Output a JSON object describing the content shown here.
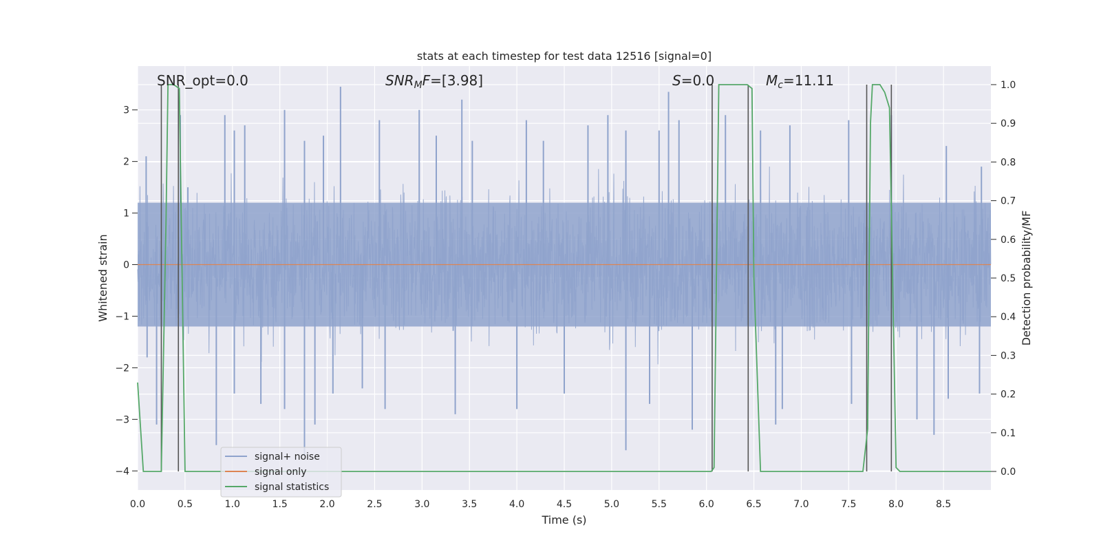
{
  "chart_data": {
    "type": "line",
    "title": "stats at each timestep for test data 12516 [signal=0]",
    "xlabel": "Time (s)",
    "ylabel": "Whitened strain",
    "y2label": "Detection probability/MF",
    "xlim": [
      0,
      9.0
    ],
    "ylim": [
      -4.37,
      3.85
    ],
    "y2lim": [
      -0.048,
      1.048
    ],
    "x_ticks": [
      "0.0",
      "0.5",
      "1.0",
      "1.5",
      "2.0",
      "2.5",
      "3.0",
      "3.5",
      "4.0",
      "4.5",
      "5.0",
      "5.5",
      "6.0",
      "6.5",
      "7.0",
      "7.5",
      "8.0",
      "8.5"
    ],
    "y_ticks": [
      "−4",
      "−3",
      "−2",
      "−1",
      "0",
      "1",
      "2",
      "3"
    ],
    "y2_ticks": [
      "0.0",
      "0.1",
      "0.2",
      "0.3",
      "0.4",
      "0.5",
      "0.6",
      "0.7",
      "0.8",
      "0.9",
      "1.0"
    ],
    "grid": true,
    "legend_position": "lower-left",
    "annotations": {
      "snr_opt": "SNR_opt=0.0",
      "snr_mf_sym": "SNR",
      "snr_mf_sub": "M",
      "snr_mf_sym2": "F",
      "snr_mf_val": "=[3.98]",
      "s_sym": "S",
      "s_val": "=0.0",
      "mc_sym": "M",
      "mc_sub": "c",
      "mc_val": "=11.11"
    },
    "series": [
      {
        "name": "signal+ noise",
        "color": "#8fa3cc",
        "axis": "left",
        "description_level": "noise band roughly ±1.2 with spikes to about ±3.5",
        "peaks_x": [
          0.09,
          0.45,
          0.53,
          0.92,
          1.02,
          1.13,
          1.55,
          1.76,
          1.96,
          2.14,
          2.55,
          2.97,
          3.15,
          3.42,
          3.53,
          4.1,
          4.28,
          4.75,
          4.96,
          5.15,
          5.5,
          5.6,
          5.71,
          6.2,
          6.57,
          6.88,
          7.5,
          7.95,
          8.53,
          8.9
        ],
        "peaks_y": [
          2.1,
          2.9,
          1.5,
          2.9,
          2.6,
          2.7,
          3.0,
          2.4,
          2.5,
          3.45,
          2.8,
          3.0,
          2.5,
          3.2,
          2.4,
          2.8,
          2.4,
          2.7,
          2.9,
          2.6,
          2.6,
          3.35,
          2.8,
          2.9,
          2.6,
          2.7,
          2.8,
          2.9,
          2.3,
          1.9
        ],
        "troughs_x": [
          0.1,
          0.2,
          0.83,
          1.02,
          1.3,
          1.55,
          1.76,
          1.87,
          2.06,
          2.37,
          2.61,
          3.35,
          4.0,
          4.5,
          5.15,
          5.4,
          5.85,
          6.73,
          6.8,
          7.53,
          8.22,
          8.4,
          8.55,
          8.88
        ],
        "troughs_y": [
          -1.8,
          -3.1,
          -3.5,
          -2.5,
          -2.7,
          -2.8,
          -3.7,
          -3.1,
          -2.5,
          -2.4,
          -2.8,
          -2.9,
          -2.8,
          -2.5,
          -3.6,
          -2.7,
          -3.2,
          -3.1,
          -2.8,
          -2.7,
          -3.0,
          -3.3,
          -2.6,
          -2.5
        ]
      },
      {
        "name": "signal only",
        "color": "#dd8452",
        "axis": "left",
        "x": [
          0.0,
          9.0
        ],
        "y": [
          0.0,
          0.0
        ]
      },
      {
        "name": "signal statistics",
        "color": "#55a868",
        "axis": "right",
        "x": [
          0.0,
          0.06,
          0.25,
          0.3,
          0.32,
          0.38,
          0.44,
          0.5,
          0.55,
          6.05,
          6.08,
          6.13,
          6.17,
          6.43,
          6.48,
          6.5,
          6.57,
          7.65,
          7.7,
          7.73,
          7.75,
          7.83,
          7.88,
          7.93,
          8.0,
          8.04,
          8.1,
          9.0
        ],
        "y": [
          0.23,
          0.0,
          0.0,
          0.65,
          1.0,
          1.0,
          0.99,
          0.0,
          0.0,
          0.0,
          0.01,
          1.0,
          1.0,
          1.0,
          0.99,
          0.5,
          0.0,
          0.0,
          0.11,
          0.9,
          1.0,
          1.0,
          0.98,
          0.94,
          0.01,
          0.0,
          0.0,
          0.0
        ]
      }
    ],
    "vlines_x": [
      0.25,
      0.43,
      6.06,
      6.44,
      7.69,
      7.95
    ],
    "vline_color": "#555555"
  }
}
